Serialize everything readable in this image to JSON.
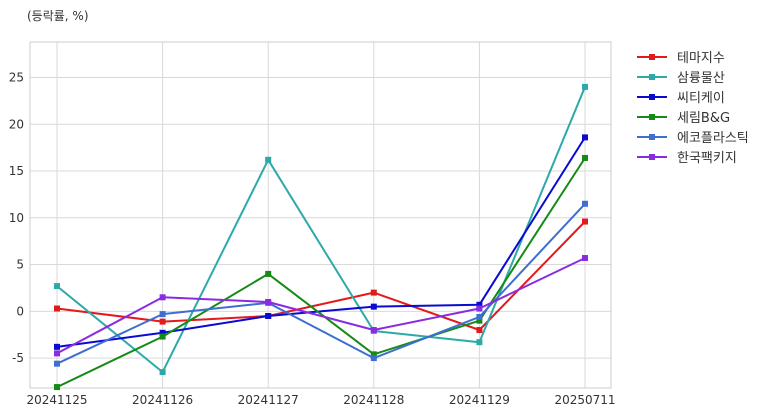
{
  "chart_data": {
    "type": "line",
    "ylabel": "(등락률, %)",
    "x": [
      "20241125",
      "20241126",
      "20241127",
      "20241128",
      "20241129",
      "20250711"
    ],
    "yticks": [
      -5,
      0,
      5,
      10,
      15,
      20,
      25
    ],
    "ylim": [
      -8.2,
      28.8
    ],
    "grid": true,
    "legend_position": "right",
    "series": [
      {
        "name": "테마지수",
        "color": "#e31a1c",
        "values": [
          0.3,
          -1.1,
          -0.5,
          2.0,
          -2.0,
          9.6
        ]
      },
      {
        "name": "삼륭물산",
        "color": "#2ca9a8",
        "values": [
          2.7,
          -6.5,
          16.2,
          -2.1,
          -3.3,
          24.0
        ]
      },
      {
        "name": "씨티케이",
        "color": "#0a0ad0",
        "values": [
          -3.8,
          -2.3,
          -0.5,
          0.5,
          0.7,
          18.6
        ]
      },
      {
        "name": "세림B&G",
        "color": "#168a16",
        "values": [
          -8.1,
          -2.7,
          4.0,
          -4.6,
          -1.0,
          16.4
        ]
      },
      {
        "name": "에코플라스틱",
        "color": "#3e6ed2",
        "values": [
          -5.6,
          -0.3,
          0.9,
          -5.0,
          -0.6,
          11.5
        ]
      },
      {
        "name": "한국팩키지",
        "color": "#8a2be2",
        "values": [
          -4.5,
          1.5,
          1.0,
          -2.0,
          0.3,
          5.7
        ]
      }
    ]
  }
}
